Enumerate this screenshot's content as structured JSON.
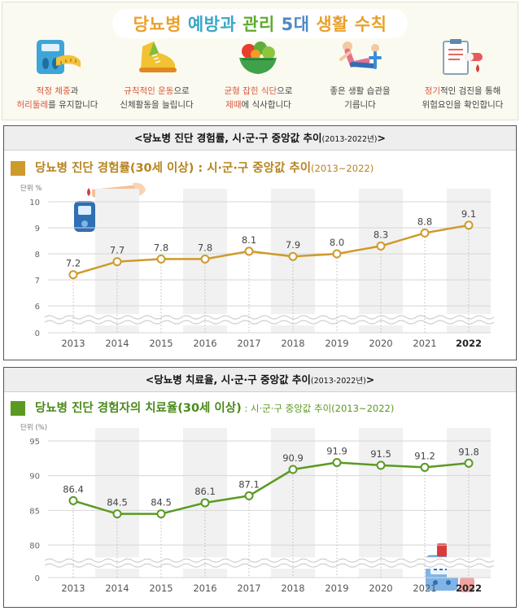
{
  "banner": {
    "title_part1": "당뇨병",
    "title_part2": "예방과",
    "title_part3": "관리",
    "title_part4": "5대",
    "title_part5": "생활 수칙",
    "tips": [
      {
        "icon": "scale-tape-icon",
        "line1_hl": "적정 체중",
        "line1": "과",
        "line2_hl": "허리둘레",
        "line2": "를 유지합니다"
      },
      {
        "icon": "sneaker-icon",
        "line1_hl": "규칙적인 운동",
        "line1": "으로",
        "line2_hl": "",
        "line2": "신체활동을 늘립니다"
      },
      {
        "icon": "salad-bowl-icon",
        "line1_hl": "균형 잡힌 식단",
        "line1": "으로",
        "line2_hl": "제때",
        "line2": "에 식사합니다"
      },
      {
        "icon": "exercise-person-icon",
        "line1_hl": "",
        "line1": "좋은 생활 습관을",
        "line2_hl": "",
        "line2": "기릅니다"
      },
      {
        "icon": "medical-checkup-icon",
        "line1_hl": "정기",
        "line1": "적인 검진을 통해",
        "line2_hl": "",
        "line2": "위험요인을 확인합니다"
      }
    ]
  },
  "panel1": {
    "header": "<당뇨병 진단 경험률, 시·군·구 중앙값 추이",
    "header_years": "(2013-2022년)",
    "header_end": ">",
    "title_main": "당뇨병 진단 경험률(30세 이상) : 시·군·구 중앙값 추이",
    "title_sub": "(2013~2022)"
  },
  "panel2": {
    "header": "<당뇨병 치료율, 시·군·구 중앙값 추이",
    "header_years": "(2013-2022년)",
    "header_end": ">",
    "title_main": "당뇨병 진단 경험자의 치료율(30세 이상)",
    "title_sub": " : 시·군·구 중앙값 추이(2013~2022)"
  },
  "chart_data": [
    {
      "type": "line",
      "title": "당뇨병 진단 경험률(30세 이상) : 시·군·구 중앙값 추이(2013~2022)",
      "ylabel": "단위 %",
      "x": [
        "2013",
        "2014",
        "2015",
        "2016",
        "2017",
        "2018",
        "2019",
        "2020",
        "2021",
        "2022"
      ],
      "values": [
        7.2,
        7.7,
        7.8,
        7.8,
        8.1,
        7.9,
        8.0,
        8.3,
        8.8,
        9.1
      ],
      "yticks": [
        "0",
        "6",
        "7",
        "8",
        "9",
        "10"
      ],
      "ylim": [
        6,
        10
      ],
      "axis_break": true,
      "color": "#cf9a2c",
      "tick_color": "#ffffff"
    },
    {
      "type": "line",
      "title": "당뇨병 진단 경험자의 치료율(30세 이상) : 시·군·구 중앙값 추이(2013~2022)",
      "ylabel": "단위 (%)",
      "x": [
        "2013",
        "2014",
        "2015",
        "2016",
        "2017",
        "2018",
        "2019",
        "2020",
        "2021",
        "2022"
      ],
      "values": [
        86.4,
        84.5,
        84.5,
        86.1,
        87.1,
        90.9,
        91.9,
        91.5,
        91.2,
        91.8
      ],
      "yticks": [
        "0",
        "80",
        "85",
        "90",
        "95"
      ],
      "ylim": [
        80,
        95
      ],
      "axis_break": true,
      "color": "#5a9a22",
      "tick_color": "#ffffff"
    }
  ]
}
